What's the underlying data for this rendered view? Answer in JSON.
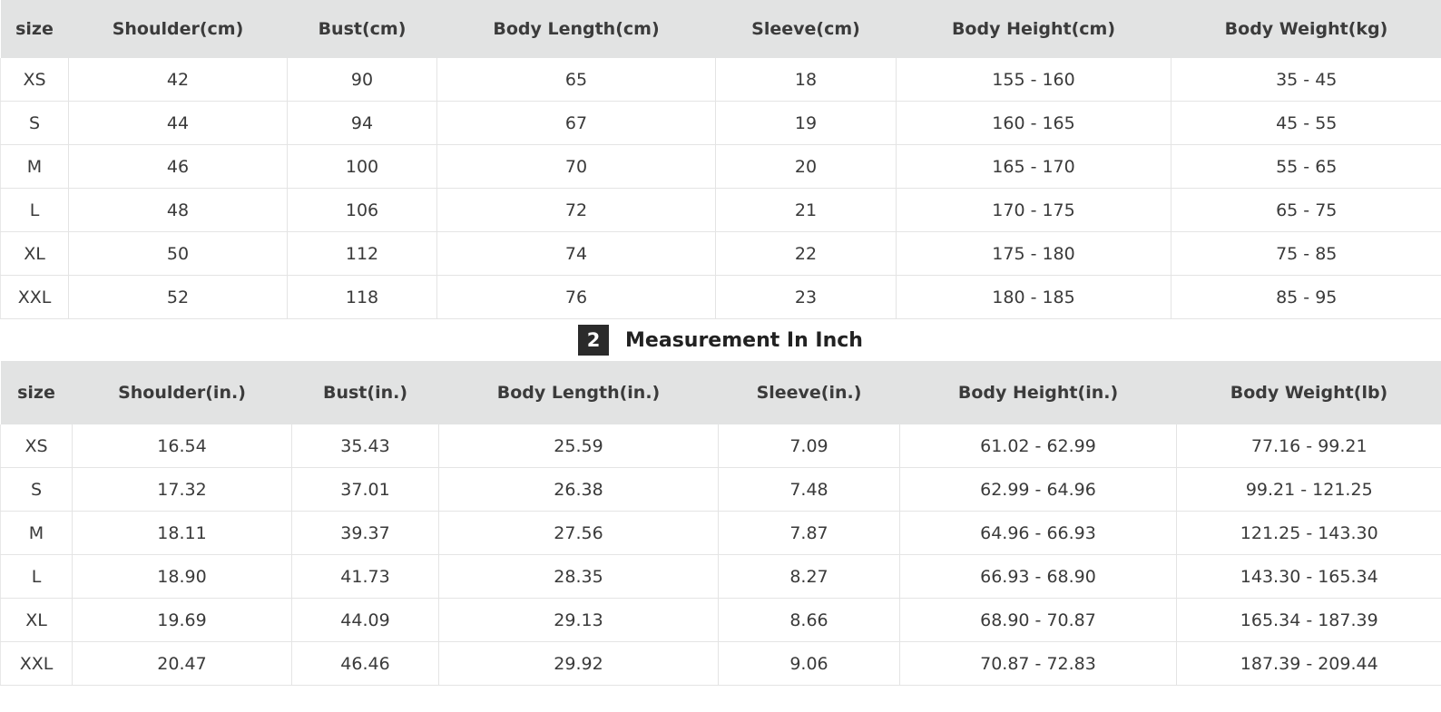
{
  "table_cm": {
    "headers": [
      "size",
      "Shoulder(cm)",
      "Bust(cm)",
      "Body Length(cm)",
      "Sleeve(cm)",
      "Body Height(cm)",
      "Body Weight(kg)"
    ],
    "rows": [
      [
        "XS",
        "42",
        "90",
        "65",
        "18",
        "155 - 160",
        "35 - 45"
      ],
      [
        "S",
        "44",
        "94",
        "67",
        "19",
        "160 - 165",
        "45 - 55"
      ],
      [
        "M",
        "46",
        "100",
        "70",
        "20",
        "165 - 170",
        "55 - 65"
      ],
      [
        "L",
        "48",
        "106",
        "72",
        "21",
        "170 - 175",
        "65 - 75"
      ],
      [
        "XL",
        "50",
        "112",
        "74",
        "22",
        "175 - 180",
        "75 - 85"
      ],
      [
        "XXL",
        "52",
        "118",
        "76",
        "23",
        "180 - 185",
        "85 - 95"
      ]
    ]
  },
  "section": {
    "badge": "2",
    "title": "Measurement In Inch"
  },
  "table_inch": {
    "headers": [
      "size",
      "Shoulder(in.)",
      "Bust(in.)",
      "Body Length(in.)",
      "Sleeve(in.)",
      "Body Height(in.)",
      "Body Weight(lb)"
    ],
    "rows": [
      [
        "XS",
        "16.54",
        "35.43",
        "25.59",
        "7.09",
        "61.02 - 62.99",
        "77.16 - 99.21"
      ],
      [
        "S",
        "17.32",
        "37.01",
        "26.38",
        "7.48",
        "62.99 - 64.96",
        "99.21 - 121.25"
      ],
      [
        "M",
        "18.11",
        "39.37",
        "27.56",
        "7.87",
        "64.96 - 66.93",
        "121.25 - 143.30"
      ],
      [
        "L",
        "18.90",
        "41.73",
        "28.35",
        "8.27",
        "66.93 - 68.90",
        "143.30 - 165.34"
      ],
      [
        "XL",
        "19.69",
        "44.09",
        "29.13",
        "8.66",
        "68.90 - 70.87",
        "165.34 - 187.39"
      ],
      [
        "XXL",
        "20.47",
        "46.46",
        "29.92",
        "9.06",
        "70.87 - 72.83",
        "187.39 - 209.44"
      ]
    ]
  }
}
